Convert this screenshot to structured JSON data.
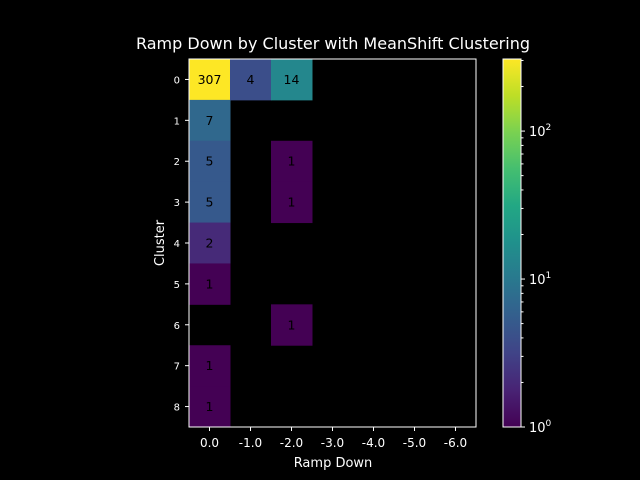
{
  "chart_data": {
    "type": "heatmap",
    "title": "Ramp Down by Cluster with MeanShift Clustering",
    "xlabel": "Ramp Down",
    "ylabel": "Cluster",
    "x_categories": [
      "0.0",
      "-1.0",
      "-2.0",
      "-3.0",
      "-4.0",
      "-5.0",
      "-6.0"
    ],
    "y_categories": [
      "0",
      "1",
      "2",
      "3",
      "4",
      "5",
      "6",
      "7",
      "8"
    ],
    "cells": [
      {
        "cluster": "0",
        "ramp_down": "0.0",
        "value": 307
      },
      {
        "cluster": "0",
        "ramp_down": "-1.0",
        "value": 4
      },
      {
        "cluster": "0",
        "ramp_down": "-2.0",
        "value": 14
      },
      {
        "cluster": "1",
        "ramp_down": "0.0",
        "value": 7
      },
      {
        "cluster": "2",
        "ramp_down": "0.0",
        "value": 5
      },
      {
        "cluster": "2",
        "ramp_down": "-2.0",
        "value": 1
      },
      {
        "cluster": "3",
        "ramp_down": "0.0",
        "value": 5
      },
      {
        "cluster": "3",
        "ramp_down": "-2.0",
        "value": 1
      },
      {
        "cluster": "4",
        "ramp_down": "0.0",
        "value": 2
      },
      {
        "cluster": "5",
        "ramp_down": "0.0",
        "value": 1
      },
      {
        "cluster": "6",
        "ramp_down": "-2.0",
        "value": 1
      },
      {
        "cluster": "7",
        "ramp_down": "0.0",
        "value": 1
      },
      {
        "cluster": "8",
        "ramp_down": "0.0",
        "value": 1
      }
    ],
    "colorbar": {
      "scale": "log",
      "range": [
        1,
        307
      ],
      "colormap": "viridis",
      "ticks": [
        {
          "value": 1,
          "base": "10",
          "exp": "0"
        },
        {
          "value": 10,
          "base": "10",
          "exp": "1"
        },
        {
          "value": 100,
          "base": "10",
          "exp": "2"
        }
      ]
    },
    "background_color": "#000000",
    "grid": false
  }
}
